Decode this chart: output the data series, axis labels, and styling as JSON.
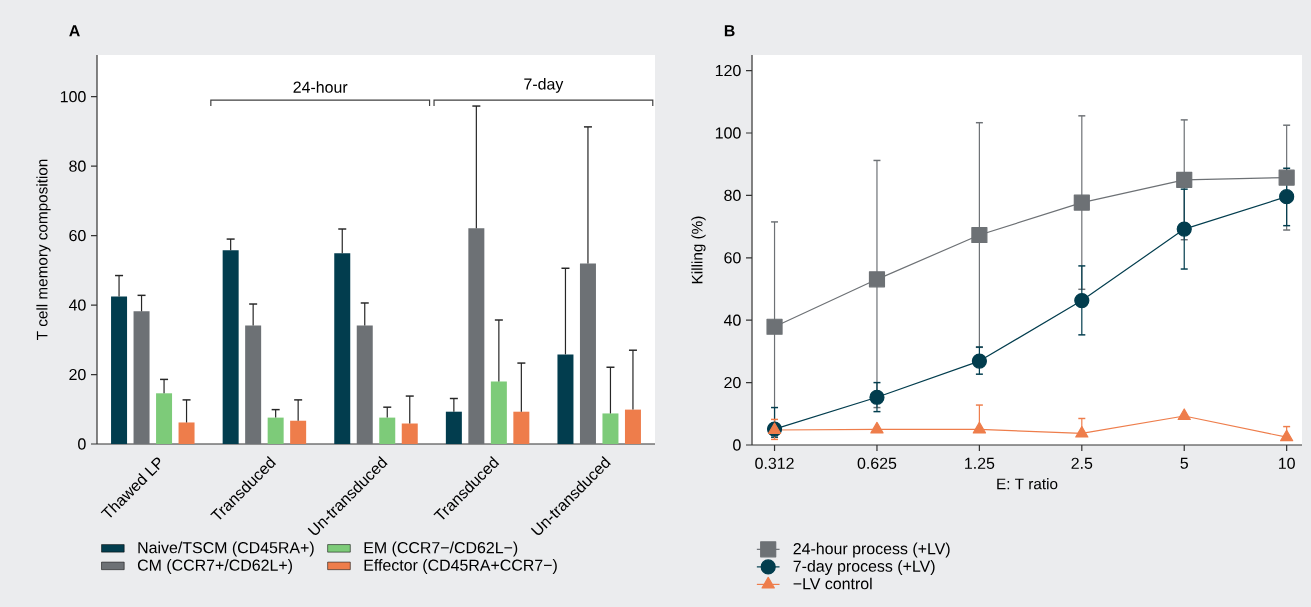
{
  "chart_data": [
    {
      "type": "bar",
      "title": "A",
      "ylabel": "T cell memory composition",
      "categories": [
        "Thawed LP",
        "Transduced",
        "Un-transduced",
        "Transduced",
        "Un-transduced"
      ],
      "series": [
        {
          "name": "Naive/TSCM (CD45RA+)",
          "color": "#023d4e",
          "values": [
            42.5,
            55.8,
            54.9,
            9.3,
            25.8
          ],
          "errors": [
            [
              42.5,
              48.5
            ],
            [
              55.8,
              59.0
            ],
            [
              54.9,
              61.9
            ],
            [
              9.3,
              13.1
            ],
            [
              25.8,
              50.6
            ]
          ]
        },
        {
          "name": "CM (CCR7+/CD62L+)",
          "color": "#6d7175",
          "values": [
            38.2,
            34.1,
            34.1,
            62.1,
            52.0
          ],
          "errors": [
            [
              38.2,
              42.8
            ],
            [
              34.1,
              40.3
            ],
            [
              34.1,
              40.6
            ],
            [
              62.1,
              97.3
            ],
            [
              52.0,
              91.3
            ]
          ]
        },
        {
          "name": "EM (CCR7−/CD62L−)",
          "color": "#7dcb79",
          "values": [
            14.6,
            7.6,
            7.6,
            18.0,
            8.8
          ],
          "errors": [
            [
              14.6,
              18.6
            ],
            [
              7.6,
              9.9
            ],
            [
              7.6,
              10.6
            ],
            [
              18.0,
              35.7
            ],
            [
              8.8,
              22.1
            ]
          ]
        },
        {
          "name": "Effector (CD45RA+CCR7−)",
          "color": "#ee7d4b",
          "values": [
            6.2,
            6.7,
            5.9,
            9.3,
            9.9
          ],
          "errors": [
            [
              6.2,
              12.7
            ],
            [
              6.7,
              12.7
            ],
            [
              5.9,
              13.8
            ],
            [
              9.3,
              23.3
            ],
            [
              9.9,
              27.0
            ]
          ]
        }
      ],
      "ylim": [
        0,
        112
      ],
      "yticks": [
        0,
        20,
        40,
        60,
        80,
        100
      ],
      "legend": "bottom",
      "annotations": [
        "24-hour",
        "7-day"
      ]
    },
    {
      "type": "line",
      "title": "B",
      "xlabel": "E: T ratio",
      "ylabel": "Killing (%)",
      "categories": [
        "0.312",
        "0.625",
        "1.25",
        "2.5",
        "5",
        "10"
      ],
      "series": [
        {
          "name": "24-hour process (+LV)",
          "color": "#6d7175",
          "marker": "square",
          "values": [
            37.9,
            53.1,
            67.3,
            77.7,
            85.0,
            85.7
          ],
          "errors": [
            [
              4.3,
              71.5
            ],
            [
              12.0,
              91.2
            ],
            [
              31.3,
              103.3
            ],
            [
              49.9,
              105.5
            ],
            [
              65.8,
              104.2
            ],
            [
              68.9,
              102.5
            ]
          ]
        },
        {
          "name": "7-day process (+LV)",
          "color": "#023d4e",
          "marker": "circle",
          "values": [
            5.1,
            15.3,
            26.9,
            46.3,
            69.2,
            79.6
          ],
          "errors": [
            [
              2.5,
              12.0
            ],
            [
              10.7,
              20.0
            ],
            [
              22.7,
              31.4
            ],
            [
              35.3,
              57.4
            ],
            [
              56.4,
              82.0
            ],
            [
              70.3,
              88.7
            ]
          ]
        },
        {
          "name": "−LV control",
          "color": "#ee7d4b",
          "marker": "triangle",
          "values": [
            4.8,
            5.0,
            5.0,
            3.7,
            9.3,
            2.5
          ],
          "errors": [
            [
              1.8,
              8.2
            ],
            null,
            [
              5.0,
              12.8
            ],
            [
              3.7,
              8.5
            ],
            null,
            [
              2.5,
              5.9
            ]
          ]
        }
      ],
      "ylim": [
        0,
        125
      ],
      "yticks": [
        0,
        20,
        40,
        60,
        80,
        100,
        120
      ],
      "legend": "bottom"
    }
  ]
}
